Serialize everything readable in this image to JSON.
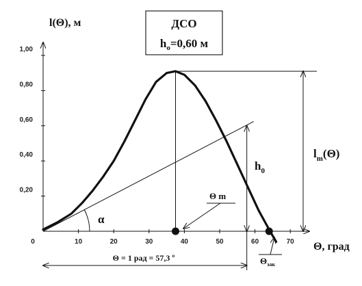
{
  "chart_data": {
    "type": "line",
    "title": "ДСО",
    "subtitle_main": "h",
    "subtitle_sub": "o",
    "subtitle_rest": "=0,60 м",
    "ylabel": "l(Θ), м",
    "xlabel": "Θ, град",
    "xlim": [
      0,
      70
    ],
    "ylim": [
      0,
      1.0
    ],
    "xticks": [
      "0",
      "10",
      "20",
      "30",
      "40",
      "50",
      "60",
      "70"
    ],
    "yticks": [
      "0,20",
      "0,40",
      "0,60",
      "0,80",
      "1,00"
    ],
    "x": [
      0,
      4,
      8,
      11,
      14,
      17,
      20,
      23,
      26,
      29,
      32,
      35,
      37.5,
      40,
      43,
      46,
      49,
      52,
      55,
      58,
      61,
      64,
      66
    ],
    "y": [
      0.01,
      0.05,
      0.1,
      0.16,
      0.23,
      0.31,
      0.4,
      0.51,
      0.63,
      0.75,
      0.85,
      0.9,
      0.91,
      0.89,
      0.83,
      0.74,
      0.63,
      0.51,
      0.38,
      0.25,
      0.12,
      0.01,
      -0.06
    ],
    "max_point": {
      "x": 37.5,
      "y": 0.91
    },
    "vanish_point": {
      "x": 64,
      "y": 0
    },
    "tangent_line": {
      "x_end": 57.3,
      "y_end": 0.6
    },
    "annotations": {
      "theta_m": "Θ m",
      "alpha": "α",
      "h0_main": "h",
      "h0_sub": "0",
      "lm_main": "l",
      "lm_sub": "m",
      "lm_rest": "(Θ)",
      "rad_label": "Θ = 1 рад = 57,3 º",
      "theta_vanish_main": "Θ",
      "theta_vanish_sub": "зак"
    },
    "grid": false
  }
}
